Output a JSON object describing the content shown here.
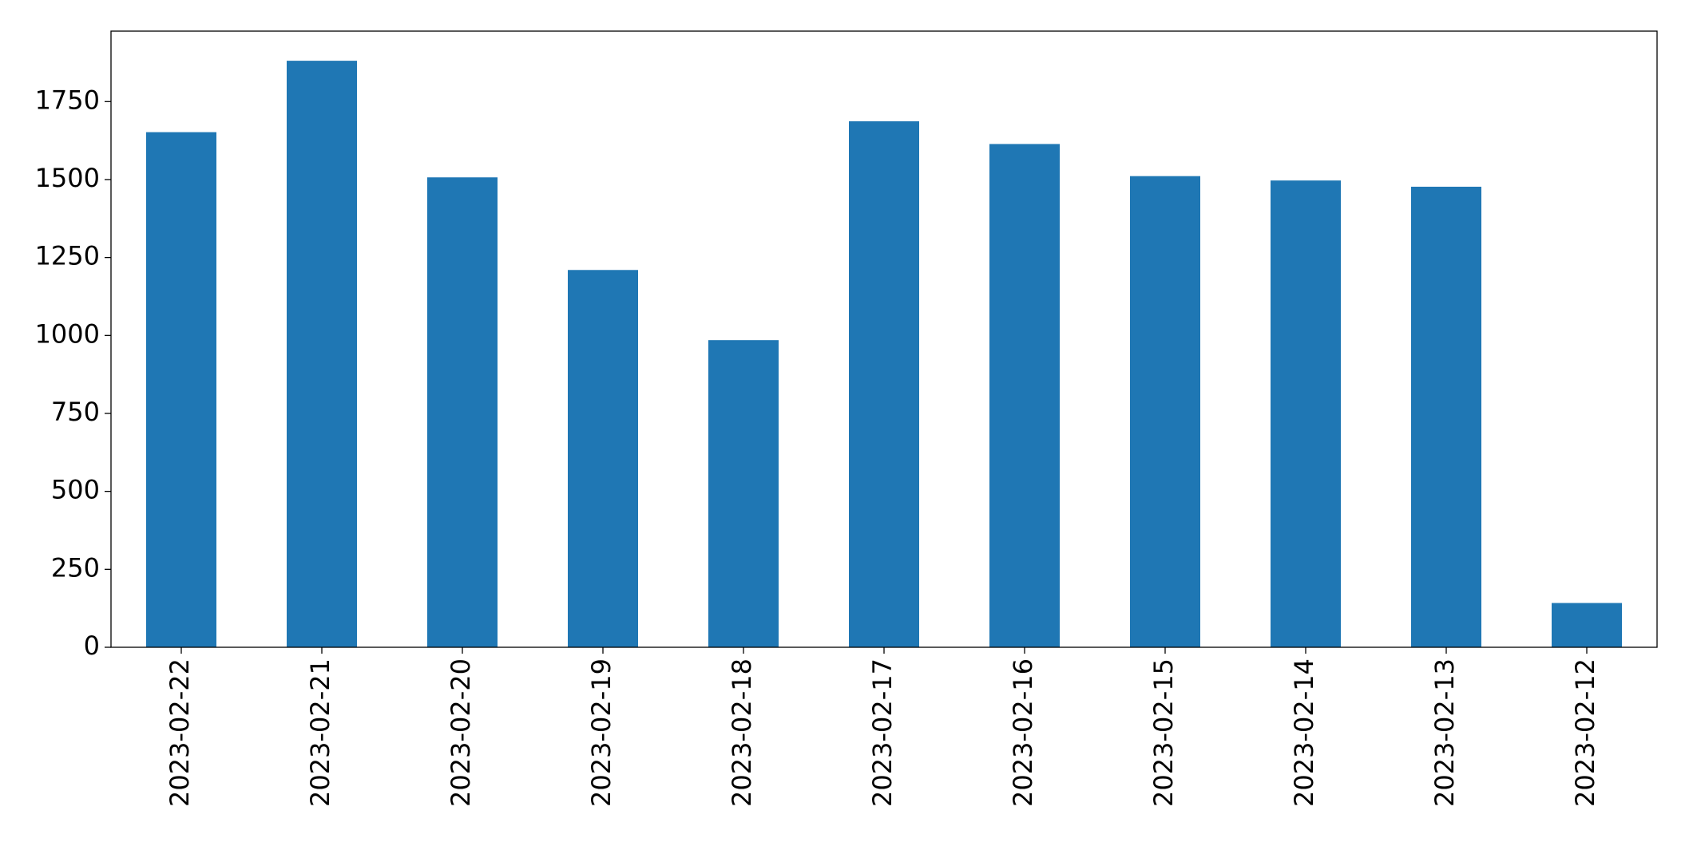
{
  "chart_data": {
    "type": "bar",
    "categories": [
      "2023-02-22",
      "2023-02-21",
      "2023-02-20",
      "2023-02-19",
      "2023-02-18",
      "2023-02-17",
      "2023-02-16",
      "2023-02-15",
      "2023-02-14",
      "2023-02-13",
      "2023-02-12"
    ],
    "values": [
      1652,
      1881,
      1507,
      1210,
      985,
      1687,
      1614,
      1511,
      1497,
      1477,
      142
    ],
    "color": "#1f77b4",
    "ylim": [
      0,
      1976
    ],
    "yticks": [
      0,
      250,
      500,
      750,
      1000,
      1250,
      1500,
      1750
    ],
    "grid": false
  }
}
